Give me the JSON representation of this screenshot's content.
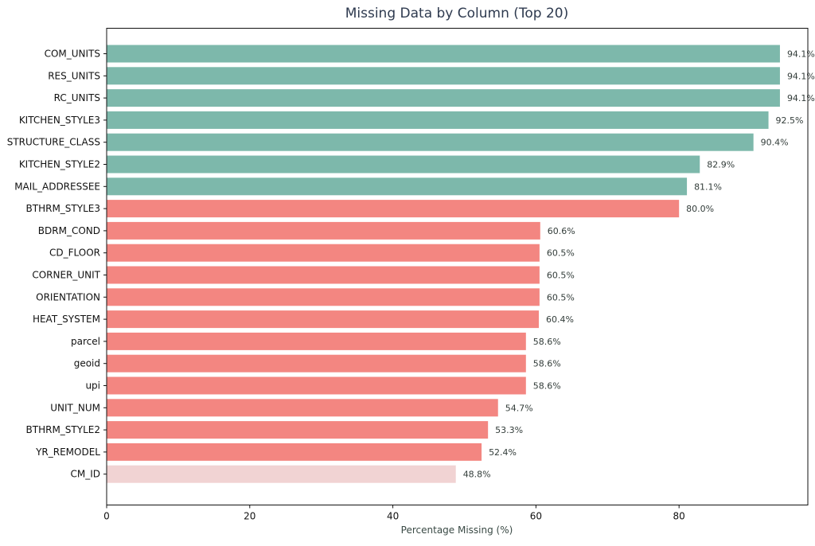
{
  "chart_data": {
    "type": "bar",
    "orientation": "horizontal",
    "title": "Missing Data by Column (Top 20)",
    "xlabel": "Percentage Missing (%)",
    "ylabel": "",
    "xlim": [
      0,
      98
    ],
    "xticks": [
      0,
      20,
      40,
      60,
      80
    ],
    "grid": false,
    "categories": [
      "COM_UNITS",
      "RES_UNITS",
      "RC_UNITS",
      "KITCHEN_STYLE3",
      "STRUCTURE_CLASS",
      "KITCHEN_STYLE2",
      "MAIL_ADDRESSEE",
      "BTHRM_STYLE3",
      "BDRM_COND",
      "CD_FLOOR",
      "CORNER_UNIT",
      "ORIENTATION",
      "HEAT_SYSTEM",
      "parcel",
      "geoid",
      "upi",
      "UNIT_NUM",
      "BTHRM_STYLE2",
      "YR_REMODEL",
      "CM_ID"
    ],
    "values": [
      94.1,
      94.1,
      94.1,
      92.5,
      90.4,
      82.9,
      81.1,
      80.0,
      60.6,
      60.5,
      60.5,
      60.5,
      60.4,
      58.6,
      58.6,
      58.6,
      54.7,
      53.3,
      52.4,
      48.8
    ],
    "value_labels": [
      "94.1%",
      "94.1%",
      "94.1%",
      "92.5%",
      "90.4%",
      "82.9%",
      "81.1%",
      "80.0%",
      "60.6%",
      "60.5%",
      "60.5%",
      "60.5%",
      "60.4%",
      "58.6%",
      "58.6%",
      "58.6%",
      "54.7%",
      "53.3%",
      "52.4%",
      "48.8%"
    ],
    "bar_colors": [
      "#7db8ab",
      "#7db8ab",
      "#7db8ab",
      "#7db8ab",
      "#7db8ab",
      "#7db8ab",
      "#7db8ab",
      "#f38681",
      "#f38681",
      "#f38681",
      "#f38681",
      "#f38681",
      "#f38681",
      "#f38681",
      "#f38681",
      "#f38681",
      "#f38681",
      "#f38681",
      "#f38681",
      "#f1d3d3"
    ]
  }
}
